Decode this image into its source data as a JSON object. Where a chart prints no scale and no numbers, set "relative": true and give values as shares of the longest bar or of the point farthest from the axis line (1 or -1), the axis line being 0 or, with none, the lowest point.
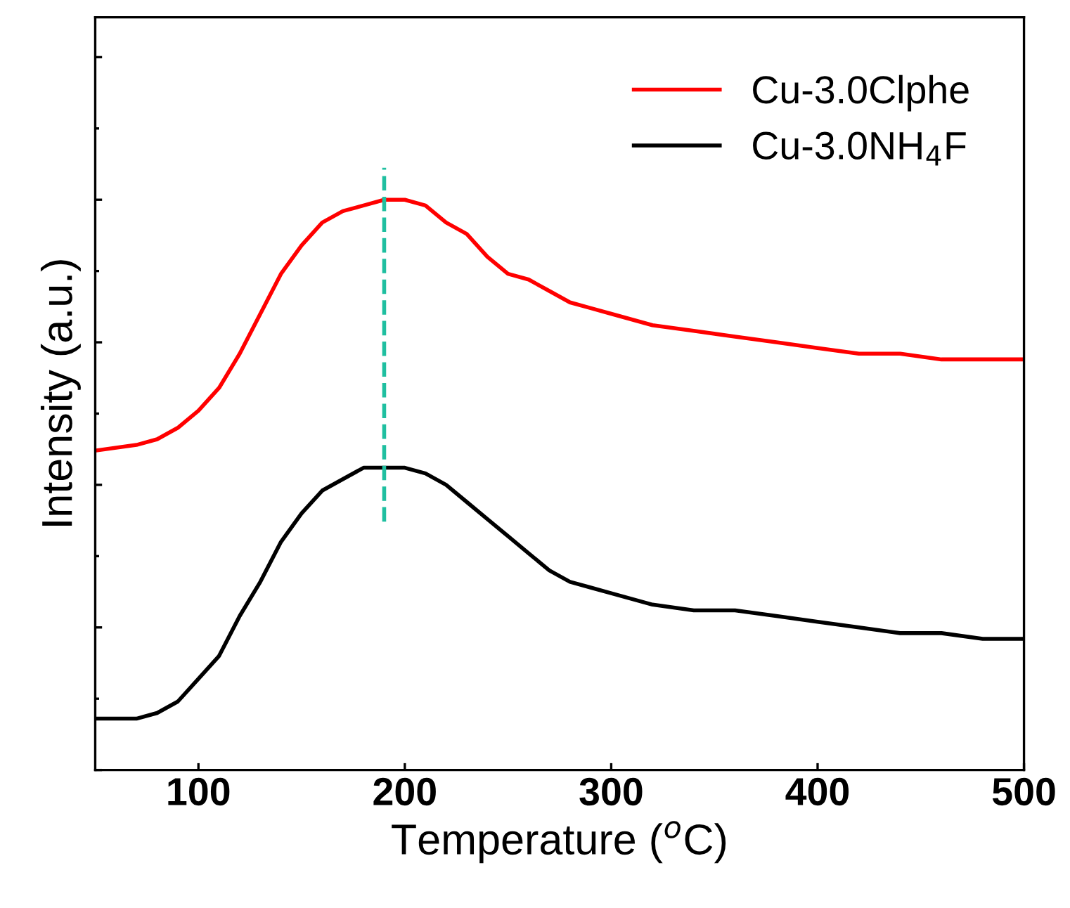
{
  "chart_data": {
    "type": "line",
    "xlabel": "Temperature ($^{o}$C)",
    "ylabel": "Intensity (a.u.)",
    "relative": true,
    "xlim": [
      50,
      500
    ],
    "xticks": [
      100,
      200,
      300,
      400,
      500
    ],
    "tick_labels": "x",
    "legend": "top right",
    "grid": false,
    "marker": "none",
    "line_style": "solid",
    "x": [
      50,
      70,
      80,
      90,
      100,
      110,
      120,
      130,
      140,
      150,
      160,
      170,
      180,
      190,
      200,
      210,
      220,
      230,
      240,
      250,
      260,
      270,
      280,
      290,
      300,
      320,
      340,
      360,
      380,
      400,
      420,
      440,
      460,
      480,
      500
    ],
    "series": [
      {
        "name": "Cu-3.0Clphe",
        "color": "#ff0000",
        "values": [
          0.56,
          0.57,
          0.58,
          0.6,
          0.63,
          0.67,
          0.73,
          0.8,
          0.87,
          0.92,
          0.96,
          0.98,
          0.99,
          1.0,
          1.0,
          0.99,
          0.96,
          0.94,
          0.9,
          0.87,
          0.86,
          0.84,
          0.82,
          0.81,
          0.8,
          0.78,
          0.77,
          0.76,
          0.75,
          0.74,
          0.73,
          0.73,
          0.72,
          0.72,
          0.72
        ]
      },
      {
        "name": "Cu-3.0NH$_{4}$F",
        "color": "#000000",
        "values": [
          0.09,
          0.09,
          0.1,
          0.12,
          0.16,
          0.2,
          0.27,
          0.33,
          0.4,
          0.45,
          0.49,
          0.51,
          0.53,
          0.53,
          0.53,
          0.52,
          0.5,
          0.47,
          0.44,
          0.41,
          0.38,
          0.35,
          0.33,
          0.32,
          0.31,
          0.29,
          0.28,
          0.28,
          0.27,
          0.26,
          0.25,
          0.24,
          0.24,
          0.23,
          0.23
        ]
      }
    ],
    "ref_lines": [
      {
        "axis": "x",
        "value": 190,
        "color": "#1fbfa0",
        "line_style": "dashed"
      }
    ]
  }
}
